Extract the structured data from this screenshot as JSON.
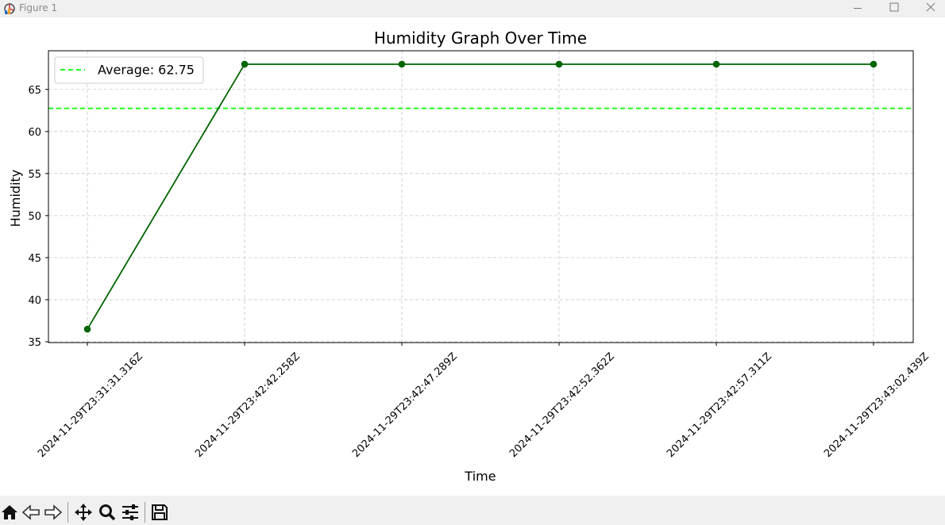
{
  "window": {
    "title": "Figure 1"
  },
  "toolbar": {
    "icons": [
      "home-icon",
      "back-icon",
      "forward-icon",
      "pan-icon",
      "zoom-icon",
      "configure-icon",
      "save-icon"
    ]
  },
  "chart_data": {
    "type": "line",
    "title": "Humidity Graph Over Time",
    "xlabel": "Time",
    "ylabel": "Humidity",
    "categories": [
      "2024-11-29T23:31:31.316Z",
      "2024-11-29T23:42:42.258Z",
      "2024-11-29T23:42:47.289Z",
      "2024-11-29T23:42:52.362Z",
      "2024-11-29T23:42:57.311Z",
      "2024-11-29T23:43:02.439Z"
    ],
    "series": [
      {
        "values": [
          36.5,
          68,
          68,
          68,
          68,
          68
        ],
        "color": "#006400",
        "marker": "circle"
      }
    ],
    "average": {
      "label": "Average: 62.75",
      "value": 62.75,
      "color": "#00ff00",
      "style": "dashed"
    },
    "yticks": [
      35,
      40,
      45,
      50,
      55,
      60,
      65
    ],
    "ylim": [
      34.9,
      69.6
    ],
    "grid": true,
    "legend_position": "top-left"
  }
}
